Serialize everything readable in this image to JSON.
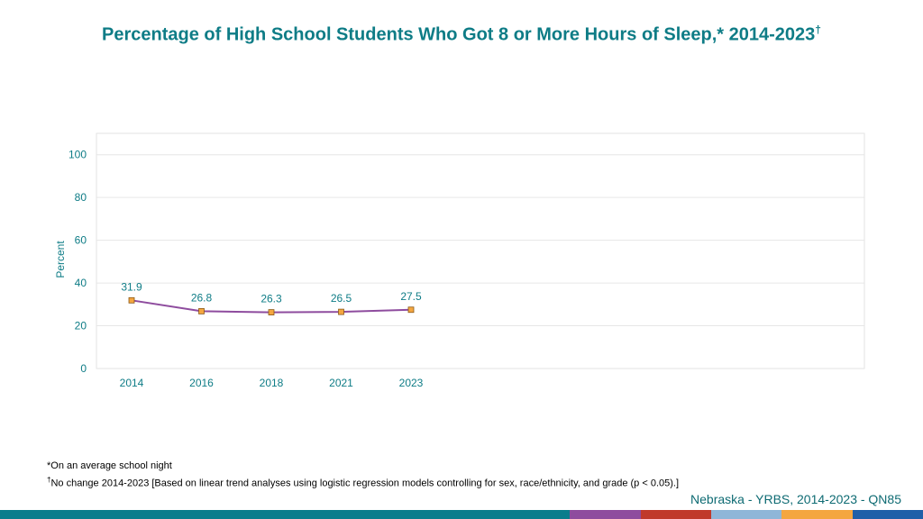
{
  "page": {
    "title": "Percentage of High School Students Who Got 8 or More Hours of Sleep,* 2014-2023",
    "title_mark": "†",
    "footnote1": "*On an average school night",
    "footnote2_mark": "†",
    "footnote2": "No change 2014-2023 [Based on linear trend analyses using logistic regression models controlling for sex, race/ethnicity, and grade (p < 0.05).]",
    "source": "Nebraska - YRBS, 2014-2023 - QN85"
  },
  "colors": {
    "title": "#0e7c86",
    "line": "#8e4c9e",
    "marker_fill": "#f4a640",
    "marker_stroke": "#8b5a1a",
    "label": "#0e7c86",
    "band": [
      "#0a7d8c",
      "#8e4c9e",
      "#c0392b",
      "#8fb6d8",
      "#f4a640",
      "#1f5fa8"
    ]
  },
  "chart_data": {
    "type": "line",
    "categories": [
      "2014",
      "2016",
      "2018",
      "2021",
      "2023"
    ],
    "series": [
      {
        "values": [
          31.9,
          26.8,
          26.3,
          26.5,
          27.5
        ]
      }
    ],
    "data_labels": [
      "31.9",
      "26.8",
      "26.3",
      "26.5",
      "27.5"
    ],
    "ylabel": "Percent",
    "xlabel": "",
    "ylim": [
      0,
      110
    ],
    "yticks": [
      0,
      20,
      40,
      60,
      80,
      100
    ],
    "grid": true,
    "legend": "none"
  }
}
